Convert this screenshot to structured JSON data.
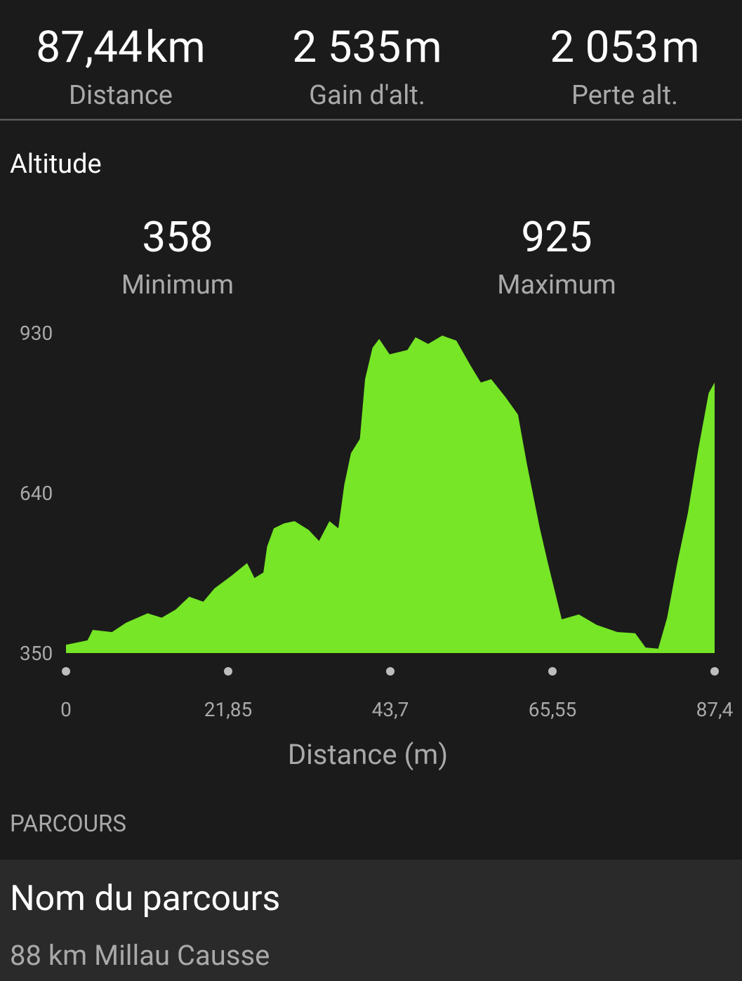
{
  "stats": [
    {
      "value": "87,44",
      "unit": "km",
      "label": "Distance"
    },
    {
      "value": "2 535",
      "unit": "m",
      "label": "Gain d'alt."
    },
    {
      "value": "2 053",
      "unit": "m",
      "label": "Perte alt."
    }
  ],
  "altitude": {
    "title": "Altitude",
    "minimum": {
      "value": 358,
      "label": "Minimum"
    },
    "maximum": {
      "value": 925,
      "label": "Maximum"
    }
  },
  "chart_data": {
    "type": "area",
    "color": "#76e626",
    "x_label": "Distance (m)",
    "x": [
      0,
      2.9,
      3.6,
      6.2,
      8.1,
      11.0,
      12.9,
      14.8,
      16.6,
      18.5,
      20.0,
      22.3,
      24.4,
      25.4,
      26.6,
      27.1,
      28.0,
      29.4,
      30.8,
      32.7,
      34.1,
      35.5,
      36.7,
      37.5,
      38.4,
      39.6,
      40.3,
      41.3,
      42.2,
      43.6,
      46.0,
      47.1,
      48.8,
      50.7,
      52.6,
      54.5,
      55.9,
      57.3,
      59.2,
      60.9,
      62.1,
      63.8,
      64.9,
      66.8,
      69.1,
      71.5,
      74.3,
      76.7,
      78.1,
      79.8,
      81.0,
      82.4,
      83.8,
      85.2,
      86.6,
      87.4
    ],
    "y": [
      365,
      373,
      392,
      388,
      405,
      422,
      414,
      429,
      452,
      443,
      467,
      490,
      513,
      486,
      496,
      543,
      576,
      585,
      589,
      573,
      553,
      589,
      576,
      655,
      712,
      738,
      846,
      903,
      919,
      891,
      899,
      922,
      910,
      925,
      916,
      871,
      840,
      846,
      814,
      782,
      693,
      579,
      515,
      411,
      420,
      401,
      388,
      386,
      360,
      358,
      414,
      515,
      604,
      719,
      821,
      840
    ],
    "xlim": [
      0,
      87.4
    ],
    "ylim": [
      350,
      930
    ],
    "xticks": [
      0,
      {
        "value": 21.85,
        "label": "21,85"
      },
      {
        "value": 43.7,
        "label": "43,7"
      },
      {
        "value": 65.55,
        "label": "65,55"
      },
      {
        "value": 87.4,
        "label": "87,4"
      }
    ],
    "yticks": [
      350,
      640,
      930
    ]
  },
  "route": {
    "section": "PARCOURS",
    "name_label": "Nom du parcours",
    "name": "88 km Millau Causse"
  }
}
